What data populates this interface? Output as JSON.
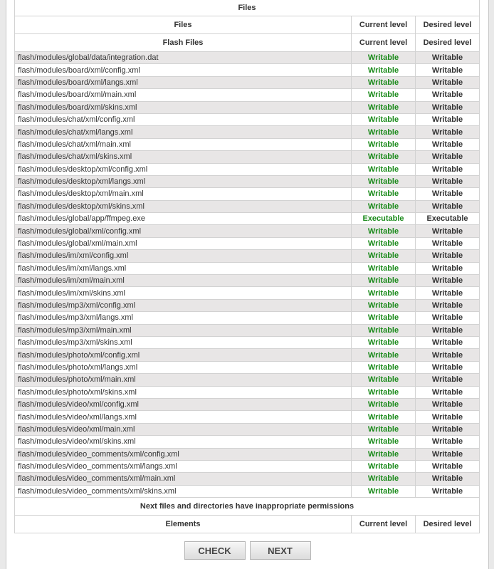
{
  "table": {
    "title": "Files",
    "header": {
      "files": "Files",
      "current": "Current level",
      "desired": "Desired level"
    },
    "section": {
      "name": "Flash Files",
      "current": "Current level",
      "desired": "Desired level"
    },
    "rows": [
      {
        "file": "flash/modules/global/data/integration.dat",
        "current": "Writable",
        "desired": "Writable"
      },
      {
        "file": "flash/modules/board/xml/config.xml",
        "current": "Writable",
        "desired": "Writable"
      },
      {
        "file": "flash/modules/board/xml/langs.xml",
        "current": "Writable",
        "desired": "Writable"
      },
      {
        "file": "flash/modules/board/xml/main.xml",
        "current": "Writable",
        "desired": "Writable"
      },
      {
        "file": "flash/modules/board/xml/skins.xml",
        "current": "Writable",
        "desired": "Writable"
      },
      {
        "file": "flash/modules/chat/xml/config.xml",
        "current": "Writable",
        "desired": "Writable"
      },
      {
        "file": "flash/modules/chat/xml/langs.xml",
        "current": "Writable",
        "desired": "Writable"
      },
      {
        "file": "flash/modules/chat/xml/main.xml",
        "current": "Writable",
        "desired": "Writable"
      },
      {
        "file": "flash/modules/chat/xml/skins.xml",
        "current": "Writable",
        "desired": "Writable"
      },
      {
        "file": "flash/modules/desktop/xml/config.xml",
        "current": "Writable",
        "desired": "Writable"
      },
      {
        "file": "flash/modules/desktop/xml/langs.xml",
        "current": "Writable",
        "desired": "Writable"
      },
      {
        "file": "flash/modules/desktop/xml/main.xml",
        "current": "Writable",
        "desired": "Writable"
      },
      {
        "file": "flash/modules/desktop/xml/skins.xml",
        "current": "Writable",
        "desired": "Writable"
      },
      {
        "file": "flash/modules/global/app/ffmpeg.exe",
        "current": "Executable",
        "desired": "Executable"
      },
      {
        "file": "flash/modules/global/xml/config.xml",
        "current": "Writable",
        "desired": "Writable"
      },
      {
        "file": "flash/modules/global/xml/main.xml",
        "current": "Writable",
        "desired": "Writable"
      },
      {
        "file": "flash/modules/im/xml/config.xml",
        "current": "Writable",
        "desired": "Writable"
      },
      {
        "file": "flash/modules/im/xml/langs.xml",
        "current": "Writable",
        "desired": "Writable"
      },
      {
        "file": "flash/modules/im/xml/main.xml",
        "current": "Writable",
        "desired": "Writable"
      },
      {
        "file": "flash/modules/im/xml/skins.xml",
        "current": "Writable",
        "desired": "Writable"
      },
      {
        "file": "flash/modules/mp3/xml/config.xml",
        "current": "Writable",
        "desired": "Writable"
      },
      {
        "file": "flash/modules/mp3/xml/langs.xml",
        "current": "Writable",
        "desired": "Writable"
      },
      {
        "file": "flash/modules/mp3/xml/main.xml",
        "current": "Writable",
        "desired": "Writable"
      },
      {
        "file": "flash/modules/mp3/xml/skins.xml",
        "current": "Writable",
        "desired": "Writable"
      },
      {
        "file": "flash/modules/photo/xml/config.xml",
        "current": "Writable",
        "desired": "Writable"
      },
      {
        "file": "flash/modules/photo/xml/langs.xml",
        "current": "Writable",
        "desired": "Writable"
      },
      {
        "file": "flash/modules/photo/xml/main.xml",
        "current": "Writable",
        "desired": "Writable"
      },
      {
        "file": "flash/modules/photo/xml/skins.xml",
        "current": "Writable",
        "desired": "Writable"
      },
      {
        "file": "flash/modules/video/xml/config.xml",
        "current": "Writable",
        "desired": "Writable"
      },
      {
        "file": "flash/modules/video/xml/langs.xml",
        "current": "Writable",
        "desired": "Writable"
      },
      {
        "file": "flash/modules/video/xml/main.xml",
        "current": "Writable",
        "desired": "Writable"
      },
      {
        "file": "flash/modules/video/xml/skins.xml",
        "current": "Writable",
        "desired": "Writable"
      },
      {
        "file": "flash/modules/video_comments/xml/config.xml",
        "current": "Writable",
        "desired": "Writable"
      },
      {
        "file": "flash/modules/video_comments/xml/langs.xml",
        "current": "Writable",
        "desired": "Writable"
      },
      {
        "file": "flash/modules/video_comments/xml/main.xml",
        "current": "Writable",
        "desired": "Writable"
      },
      {
        "file": "flash/modules/video_comments/xml/skins.xml",
        "current": "Writable",
        "desired": "Writable"
      }
    ],
    "notice": "Next files and directories have inappropriate permissions",
    "elements_header": {
      "name": "Elements",
      "current": "Current level",
      "desired": "Desired level"
    }
  },
  "buttons": {
    "check": "CHECK",
    "next": "NEXT"
  },
  "colors": {
    "ok_status": "#1a8a1a",
    "row_stripe": "#e8e6e6"
  }
}
